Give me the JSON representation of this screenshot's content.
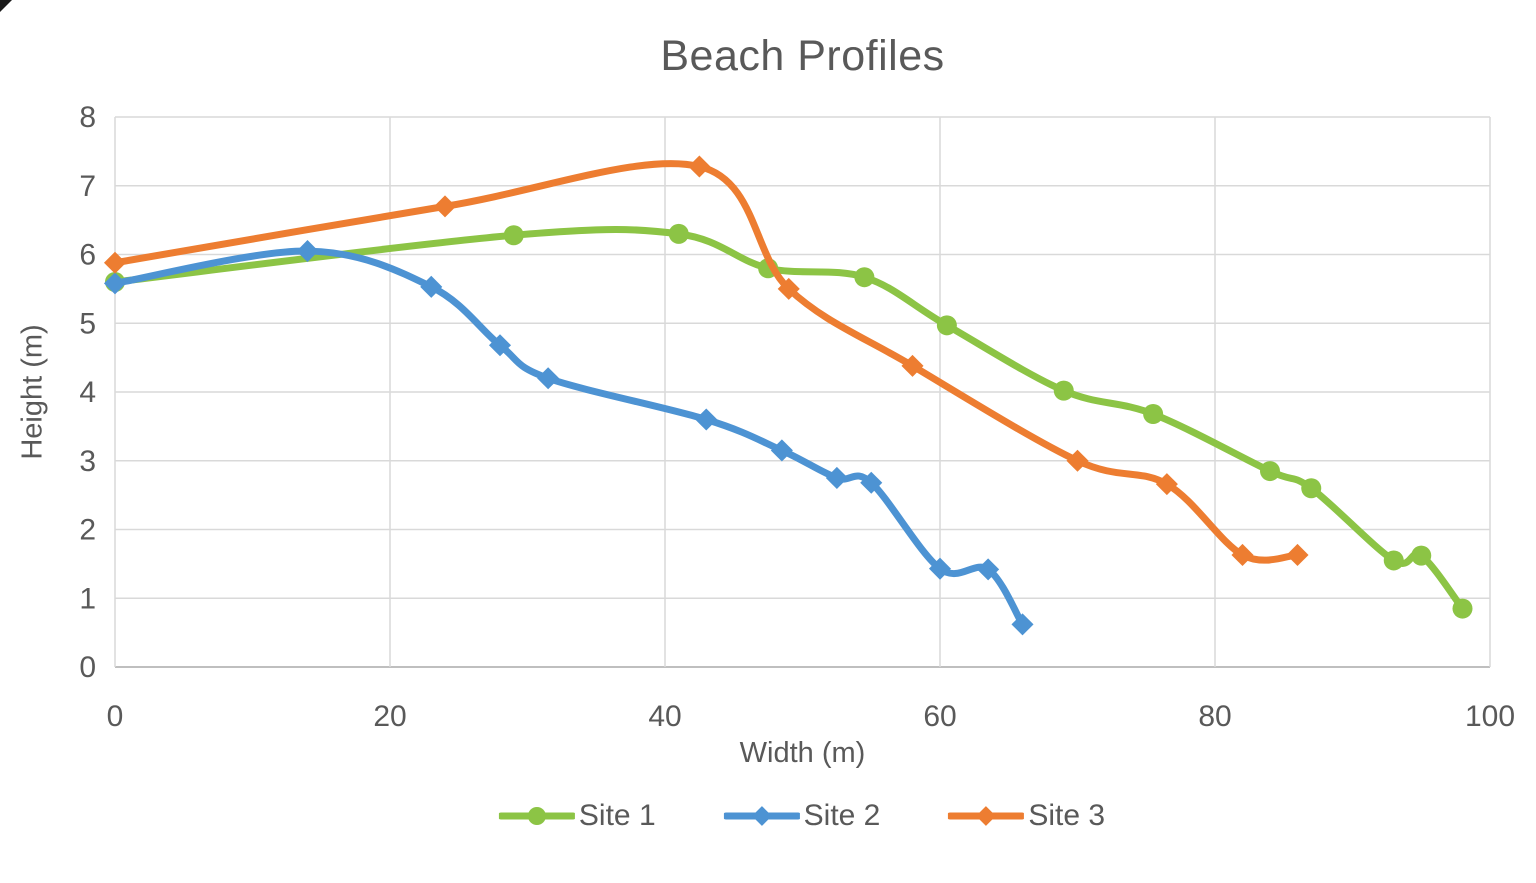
{
  "chart_data": {
    "type": "line",
    "title": "Beach Profiles",
    "xlabel": "Width (m)",
    "ylabel": "Height (m)",
    "xlim": [
      0,
      100
    ],
    "ylim": [
      0,
      8
    ],
    "x_ticks": [
      0,
      20,
      40,
      60,
      80,
      100
    ],
    "y_ticks": [
      0,
      1,
      2,
      3,
      4,
      5,
      6,
      7,
      8
    ],
    "grid": true,
    "smooth_lines": true,
    "legend_position": "bottom",
    "series": [
      {
        "name": "Site 1",
        "color": "#8CC445",
        "marker": "circle",
        "points": [
          [
            0,
            5.6
          ],
          [
            29,
            6.28
          ],
          [
            41,
            6.3
          ],
          [
            47.5,
            5.8
          ],
          [
            54.5,
            5.67
          ],
          [
            60.5,
            4.97
          ],
          [
            69,
            4.02
          ],
          [
            75.5,
            3.68
          ],
          [
            84,
            2.85
          ],
          [
            87,
            2.6
          ],
          [
            93,
            1.55
          ],
          [
            95,
            1.62
          ],
          [
            98,
            0.85
          ]
        ]
      },
      {
        "name": "Site 2",
        "color": "#4D93D3",
        "marker": "diamond",
        "points": [
          [
            0,
            5.58
          ],
          [
            14,
            6.05
          ],
          [
            23,
            5.53
          ],
          [
            28,
            4.68
          ],
          [
            31.5,
            4.2
          ],
          [
            43,
            3.6
          ],
          [
            48.5,
            3.15
          ],
          [
            52.5,
            2.75
          ],
          [
            55,
            2.68
          ],
          [
            60,
            1.43
          ],
          [
            63.5,
            1.42
          ],
          [
            66,
            0.62
          ]
        ]
      },
      {
        "name": "Site 3",
        "color": "#ED7D31",
        "marker": "diamond",
        "points": [
          [
            0,
            5.88
          ],
          [
            24,
            6.7
          ],
          [
            42.5,
            7.28
          ],
          [
            49,
            5.5
          ],
          [
            58,
            4.38
          ],
          [
            70,
            3.0
          ],
          [
            76.5,
            2.66
          ],
          [
            82,
            1.63
          ],
          [
            86,
            1.63
          ]
        ]
      }
    ],
    "colors": {
      "grid": "#D9D9D9",
      "axis_line": "#BFBFBF",
      "text": "#595959",
      "background": "#FFFFFF"
    }
  }
}
